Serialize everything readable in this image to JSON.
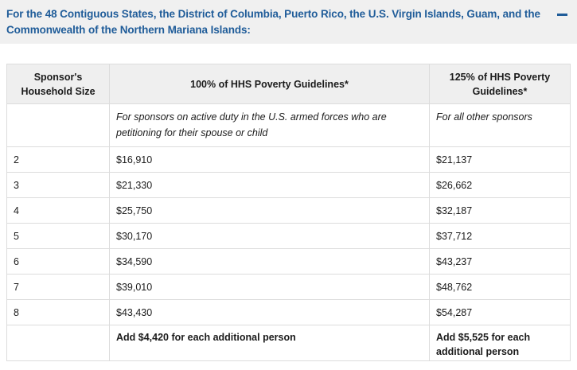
{
  "accordion": {
    "title": "For the 48 Contiguous States, the District of Columbia, Puerto Rico, the U.S. Virgin Islands, Guam, and the Commonwealth of the Northern Mariana Islands:",
    "toggle_icon": "minus-icon",
    "accent_color": "#1f5c99"
  },
  "table": {
    "headers": {
      "household_size": "Sponsor's Household Size",
      "col_100": "100% of HHS Poverty Guidelines*",
      "col_125": "125% of HHS Poverty Guidelines*"
    },
    "descriptions": {
      "household_size": "",
      "col_100": "For sponsors on active duty in the U.S. armed forces who are petitioning for their spouse or child",
      "col_125": "For all other sponsors"
    },
    "rows": [
      {
        "size": "2",
        "p100": "$16,910",
        "p125": "$21,137"
      },
      {
        "size": "3",
        "p100": "$21,330",
        "p125": "$26,662"
      },
      {
        "size": "4",
        "p100": "$25,750",
        "p125": "$32,187"
      },
      {
        "size": "5",
        "p100": "$30,170",
        "p125": "$37,712"
      },
      {
        "size": "6",
        "p100": "$34,590",
        "p125": "$43,237"
      },
      {
        "size": "7",
        "p100": "$39,010",
        "p125": "$48,762"
      },
      {
        "size": "8",
        "p100": "$43,430",
        "p125": "$54,287"
      }
    ],
    "footer": {
      "household_size": "",
      "col_100": "Add $4,420 for each additional person",
      "col_125": "Add $5,525 for each additional person"
    }
  }
}
